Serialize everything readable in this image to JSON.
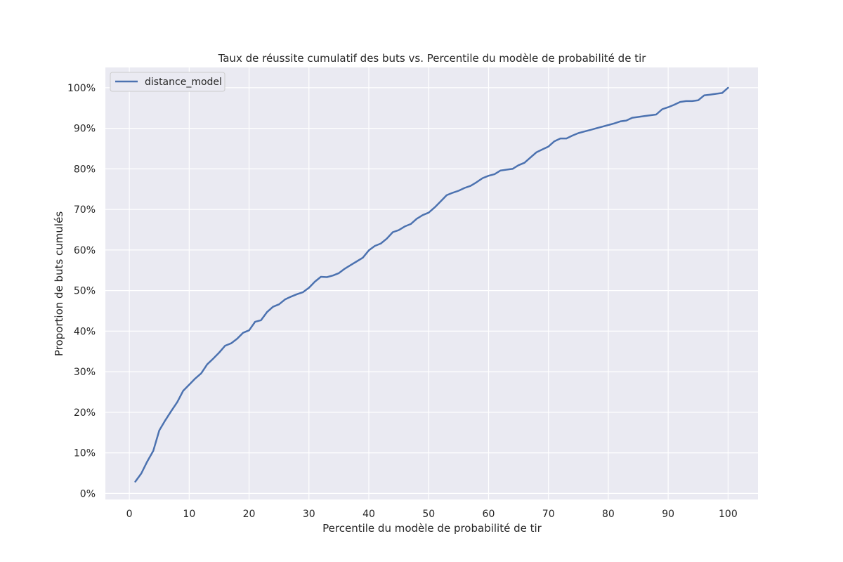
{
  "chart_data": {
    "type": "line",
    "title": "Taux de réussite cumulatif des buts vs. Percentile du modèle de probabilité de tir",
    "xlabel": "Percentile du modèle de probabilité de tir",
    "ylabel": "Proportion de buts cumulés",
    "xlim": [
      -4,
      105
    ],
    "ylim": [
      -1.5,
      105
    ],
    "xticks": [
      0,
      10,
      20,
      30,
      40,
      50,
      60,
      70,
      80,
      90,
      100
    ],
    "xtick_labels": [
      "0",
      "10",
      "20",
      "30",
      "40",
      "50",
      "60",
      "70",
      "80",
      "90",
      "100"
    ],
    "yticks": [
      0,
      10,
      20,
      30,
      40,
      50,
      60,
      70,
      80,
      90,
      100
    ],
    "ytick_labels": [
      "0%",
      "10%",
      "20%",
      "30%",
      "40%",
      "50%",
      "60%",
      "70%",
      "80%",
      "90%",
      "100%"
    ],
    "grid": true,
    "legend": "top-left",
    "colors": {
      "background": "#eaeaf2",
      "grid": "#ffffff",
      "line": "#4c72b0"
    },
    "series": [
      {
        "name": "distance_model",
        "x": [
          1,
          2,
          3,
          4,
          5,
          6,
          7,
          8,
          9,
          10,
          11,
          12,
          13,
          14,
          15,
          16,
          17,
          18,
          19,
          20,
          21,
          22,
          23,
          24,
          25,
          26,
          27,
          28,
          29,
          30,
          31,
          32,
          33,
          34,
          35,
          36,
          37,
          38,
          39,
          40,
          41,
          42,
          43,
          44,
          45,
          46,
          47,
          48,
          49,
          50,
          51,
          52,
          53,
          54,
          55,
          56,
          57,
          58,
          59,
          60,
          61,
          62,
          63,
          64,
          65,
          66,
          67,
          68,
          69,
          70,
          71,
          72,
          73,
          74,
          75,
          76,
          77,
          78,
          79,
          80,
          81,
          82,
          83,
          84,
          85,
          86,
          87,
          88,
          89,
          90,
          91,
          92,
          93,
          94,
          95,
          96,
          97,
          98,
          99,
          100
        ],
        "y": [
          2.9,
          4.9,
          7.9,
          10.5,
          15.5,
          18.0,
          20.3,
          22.5,
          25.3,
          26.8,
          28.3,
          29.6,
          31.8,
          33.2,
          34.7,
          36.4,
          37.0,
          38.1,
          39.6,
          40.2,
          42.3,
          42.7,
          44.7,
          46.0,
          46.6,
          47.8,
          48.5,
          49.1,
          49.6,
          50.7,
          52.2,
          53.4,
          53.3,
          53.7,
          54.3,
          55.4,
          56.3,
          57.2,
          58.1,
          59.9,
          61.0,
          61.6,
          62.8,
          64.4,
          64.9,
          65.8,
          66.4,
          67.7,
          68.6,
          69.2,
          70.5,
          72.0,
          73.5,
          74.1,
          74.6,
          75.3,
          75.8,
          76.7,
          77.7,
          78.3,
          78.7,
          79.6,
          79.8,
          80.0,
          80.9,
          81.5,
          82.8,
          84.1,
          84.8,
          85.5,
          86.8,
          87.5,
          87.5,
          88.2,
          88.8,
          89.2,
          89.6,
          90.0,
          90.4,
          90.8,
          91.2,
          91.7,
          91.9,
          92.6,
          92.8,
          93.0,
          93.2,
          93.4,
          94.7,
          95.2,
          95.8,
          96.5,
          96.7,
          96.7,
          96.9,
          98.1,
          98.3,
          98.5,
          98.7,
          100.0
        ]
      }
    ]
  }
}
